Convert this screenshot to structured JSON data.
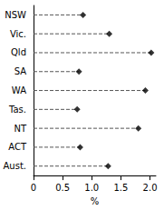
{
  "chart_data": {
    "type": "scatter",
    "orientation": "horizontal",
    "categories": [
      "NSW",
      "Vic.",
      "Qld",
      "SA",
      "WA",
      "Tas.",
      "NT",
      "ACT",
      "Aust."
    ],
    "values": [
      0.85,
      1.3,
      2.02,
      0.78,
      1.92,
      0.75,
      1.8,
      0.8,
      1.28
    ],
    "color": "#000000",
    "marker": "diamond",
    "line_style": "dashed",
    "xlabel": "%",
    "xlim": [
      0,
      2.1
    ],
    "xticks": [
      0,
      0.5,
      {
        "value": 1,
        "label": "1.0"
      },
      1.5,
      {
        "value": 2,
        "label": "2.0"
      }
    ],
    "grid": false
  }
}
